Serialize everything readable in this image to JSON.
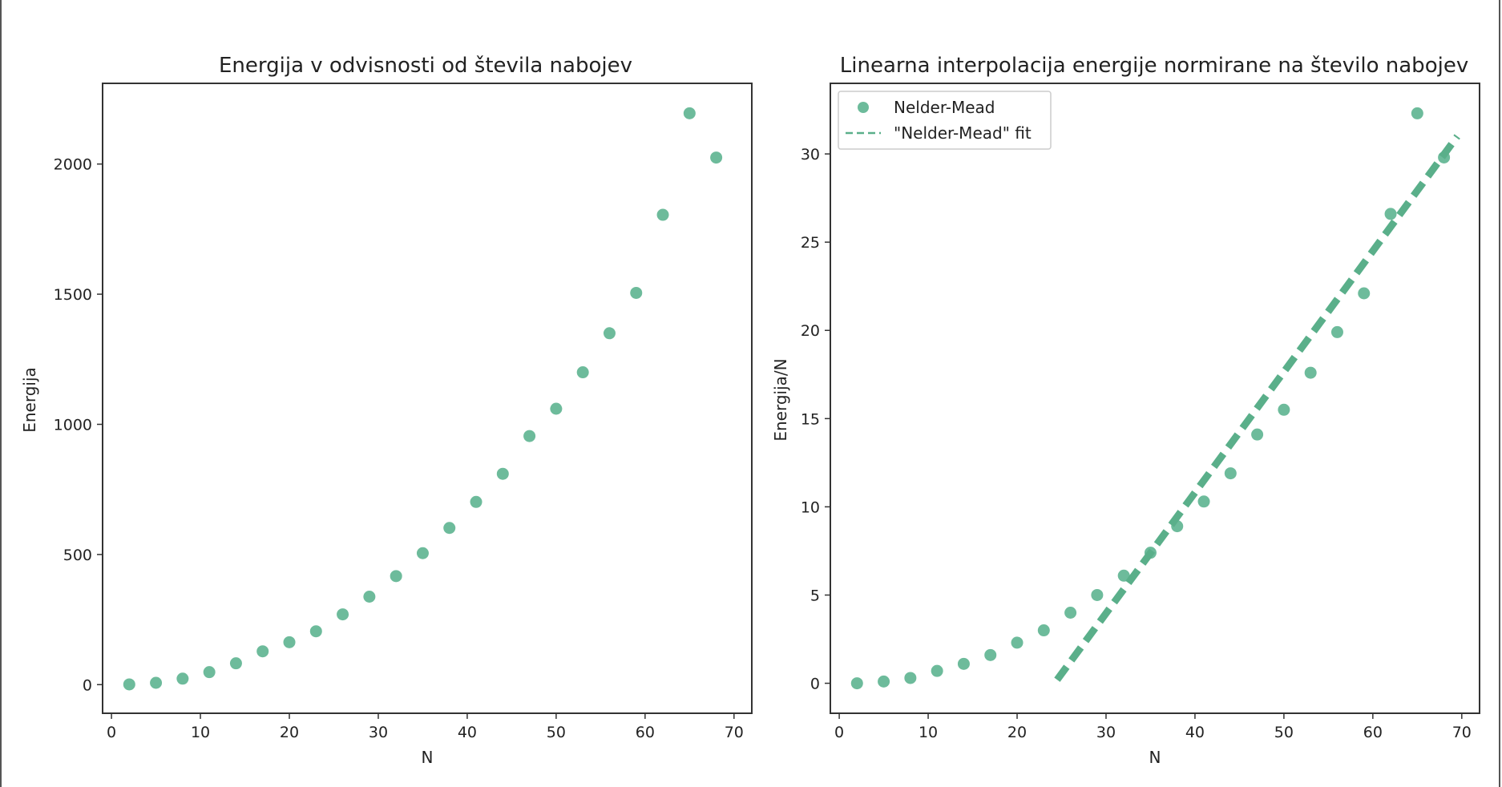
{
  "colors": {
    "marker": "#6dbb9b",
    "fit": "#5aaf8a",
    "axis": "#333333",
    "text": "#222222"
  },
  "chart_data": [
    {
      "type": "scatter",
      "title": "Energija v odvisnosti od števila nabojev",
      "xlabel": "N",
      "ylabel": "Energija",
      "xlim": [
        -1,
        72
      ],
      "ylim": [
        -110,
        2310
      ],
      "xticks": [
        0,
        10,
        20,
        30,
        40,
        50,
        60,
        70
      ],
      "yticks": [
        0,
        500,
        1000,
        1500,
        2000
      ],
      "grid": false,
      "series": [
        {
          "x": [
            2,
            5,
            8,
            11,
            14,
            17,
            20,
            23,
            26,
            29,
            32,
            35,
            38,
            41,
            44,
            47,
            50,
            53,
            56,
            59,
            62,
            65,
            68
          ],
          "y": [
            1,
            7,
            23,
            48,
            82,
            128,
            163,
            205,
            270,
            338,
            417,
            505,
            602,
            702,
            810,
            955,
            1060,
            1200,
            1350,
            1505,
            1805,
            2195,
            2025
          ]
        }
      ]
    },
    {
      "type": "scatter",
      "title": "Linearna interpolacija energije normirane na število nabojev",
      "xlabel": "N",
      "ylabel": "Energija/N",
      "xlim": [
        -1,
        72
      ],
      "ylim": [
        -1.7,
        34.0
      ],
      "xticks": [
        0,
        10,
        20,
        30,
        40,
        50,
        60,
        70
      ],
      "yticks": [
        0,
        5,
        10,
        15,
        20,
        25,
        30
      ],
      "grid": false,
      "legend": {
        "position": "top-left",
        "entries": [
          "Nelder-Mead",
          "\"Nelder-Mead\" fit"
        ]
      },
      "series": [
        {
          "name": "Nelder-Mead",
          "kind": "scatter",
          "x": [
            2,
            5,
            8,
            11,
            14,
            17,
            20,
            23,
            26,
            29,
            32,
            35,
            38,
            41,
            44,
            47,
            50,
            53,
            56,
            59,
            62,
            65,
            68
          ],
          "y": [
            0.0,
            0.1,
            0.3,
            0.7,
            1.1,
            1.6,
            2.3,
            3.0,
            4.0,
            5.0,
            6.1,
            7.4,
            8.9,
            10.3,
            11.9,
            14.1,
            15.5,
            17.6,
            19.9,
            22.1,
            26.6,
            32.3,
            29.8
          ]
        },
        {
          "name": "\"Nelder-Mead\" fit",
          "kind": "line",
          "dashed": true,
          "x": [
            24.5,
            69.5
          ],
          "y": [
            0.2,
            31.0
          ]
        }
      ]
    }
  ]
}
